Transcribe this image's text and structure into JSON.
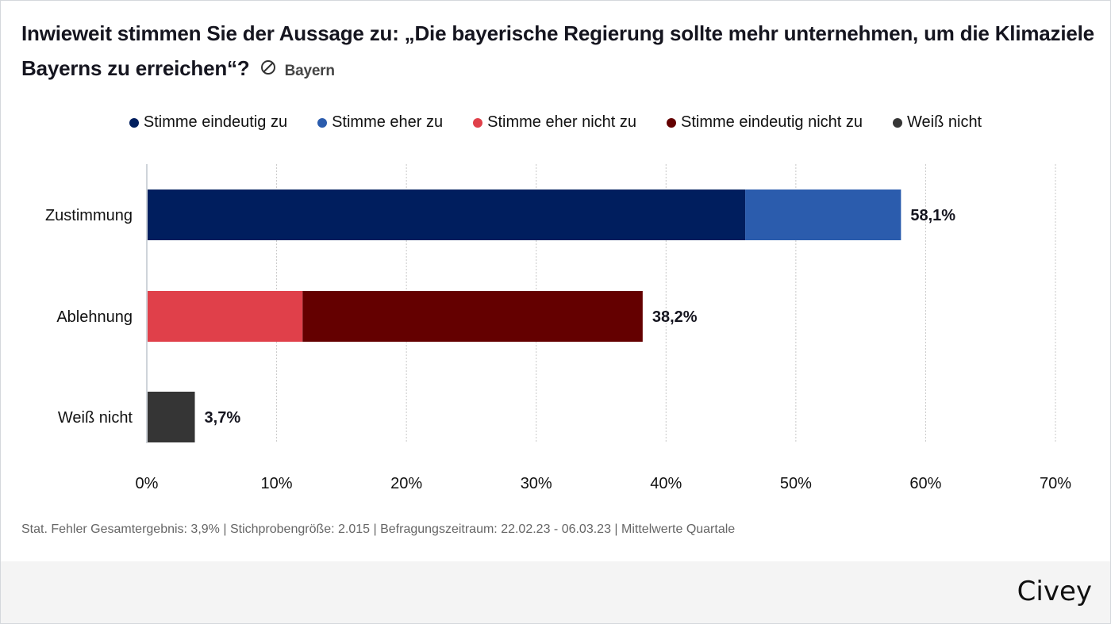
{
  "header": {
    "title": "Inwieweit stimmen Sie der Aussage zu: „Die bayerische Regierung sollte mehr unternehmen, um die Klimaziele Bayerns zu erreichen“?",
    "region_icon": "no-symbol-icon",
    "region": "Bayern"
  },
  "colors": {
    "stimme_eindeutig_zu": "#001e5e",
    "stimme_eher_zu": "#2b5cad",
    "stimme_eher_nicht_zu": "#e0404a",
    "stimme_eindeutig_nicht_zu": "#640000",
    "weiss_nicht": "#353535"
  },
  "chart_data": {
    "type": "bar",
    "orientation": "horizontal",
    "stacked": true,
    "title": "Inwieweit stimmen Sie der Aussage zu: „Die bayerische Regierung sollte mehr unternehmen, um die Klimaziele Bayerns zu erreichen“?",
    "categories": [
      "Zustimmung",
      "Ablehnung",
      "Weiß nicht"
    ],
    "series": [
      {
        "name": "Stimme eindeutig zu",
        "color": "#001e5e",
        "values": [
          46.1,
          0,
          0
        ]
      },
      {
        "name": "Stimme eher zu",
        "color": "#2b5cad",
        "values": [
          12.0,
          0,
          0
        ]
      },
      {
        "name": "Stimme eher nicht zu",
        "color": "#e0404a",
        "values": [
          0,
          12.0,
          0
        ]
      },
      {
        "name": "Stimme eindeutig nicht zu",
        "color": "#640000",
        "values": [
          0,
          26.2,
          0
        ]
      },
      {
        "name": "Weiß nicht",
        "color": "#353535",
        "values": [
          0,
          0,
          3.7
        ]
      }
    ],
    "totals": [
      58.1,
      38.2,
      3.7
    ],
    "total_labels": [
      "58,1%",
      "38,2%",
      "3,7%"
    ],
    "xlim": [
      0,
      70
    ],
    "xticks": [
      0,
      10,
      20,
      30,
      40,
      50,
      60,
      70
    ],
    "xtick_labels": [
      "0%",
      "10%",
      "20%",
      "30%",
      "40%",
      "50%",
      "60%",
      "70%"
    ],
    "xlabel": "",
    "ylabel": "",
    "grid": "vertical dotted",
    "legend_position": "top-center"
  },
  "footer": {
    "note": "Stat. Fehler Gesamtergebnis: 3,9% | Stichprobengröße: 2.015 | Befragungszeitraum: 22.02.23 - 06.03.23 | Mittelwerte Quartale",
    "brand": "Civey"
  }
}
